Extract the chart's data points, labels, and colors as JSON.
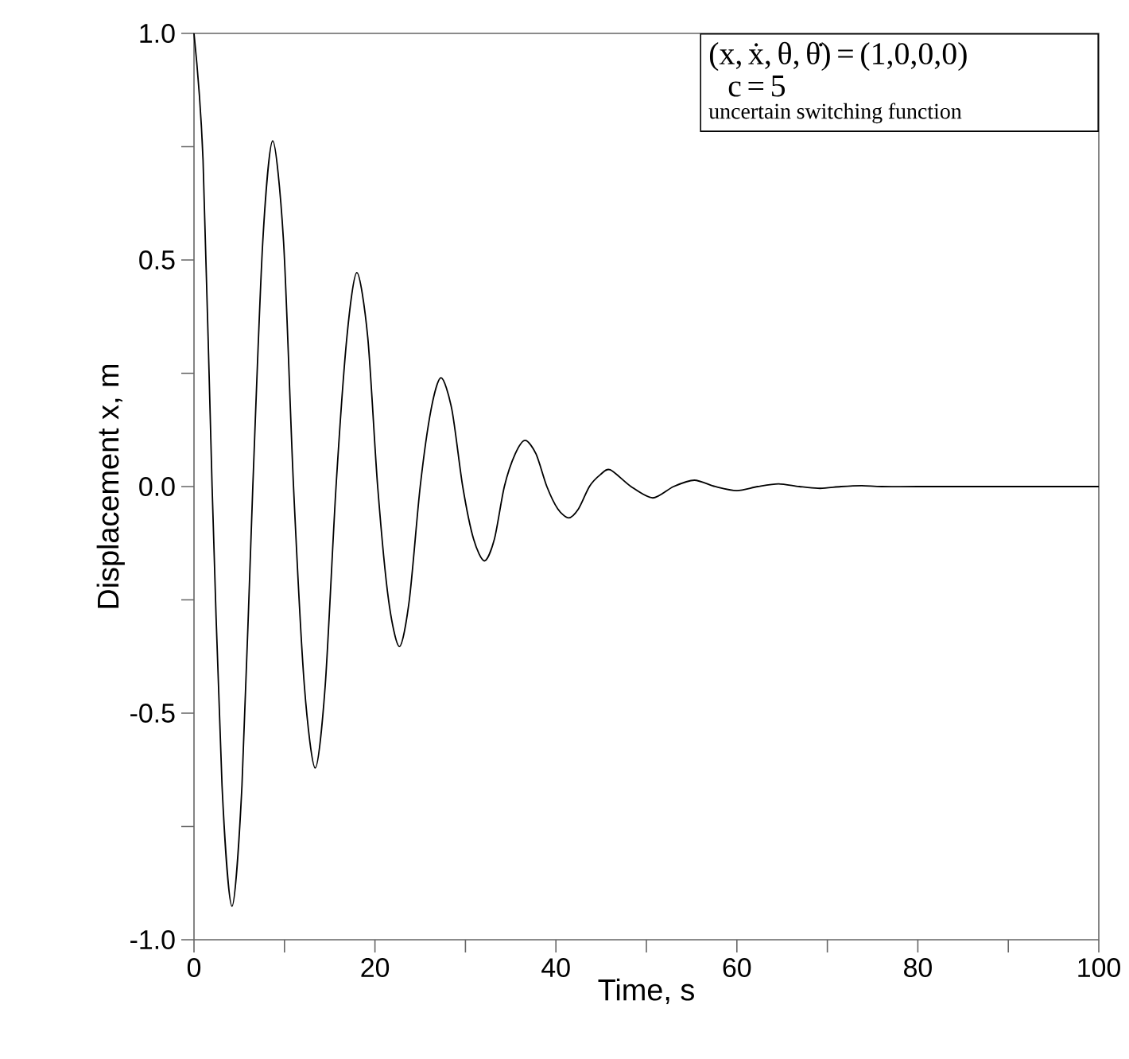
{
  "chart_data": {
    "type": "line",
    "xlabel": "Time, s",
    "ylabel": "Displacement x, m",
    "x": [
      0,
      1.0,
      2.0,
      3.1,
      4.2,
      5.3,
      6.5,
      7.6,
      8.7,
      9.9,
      11.0,
      12.2,
      13.4,
      14.5,
      15.7,
      16.9,
      18.0,
      19.2,
      20.3,
      21.5,
      22.7,
      23.8,
      25.0,
      26.2,
      27.3,
      28.5,
      29.7,
      30.9,
      32.1,
      33.2,
      34.3,
      35.5,
      36.6,
      37.8,
      39.0,
      40.2,
      41.4,
      42.5,
      43.7,
      44.9,
      46.0,
      48.3,
      50.7,
      53.0,
      55.3,
      57.6,
      60.0,
      62.3,
      64.6,
      66.9,
      69.2,
      71.5,
      73.8,
      76.0,
      80,
      90,
      100
    ],
    "series": [
      {
        "color": "#000000",
        "values": [
          1.0,
          0.72,
          0.0,
          -0.66,
          -0.926,
          -0.66,
          0.0,
          0.54,
          0.763,
          0.54,
          0.0,
          -0.44,
          -0.621,
          -0.44,
          0.0,
          0.33,
          0.472,
          0.33,
          0.0,
          -0.25,
          -0.353,
          -0.25,
          0.0,
          0.17,
          0.24,
          0.17,
          0.0,
          -0.116,
          -0.164,
          -0.116,
          0.0,
          0.072,
          0.102,
          0.072,
          0.0,
          -0.049,
          -0.069,
          -0.049,
          0.0,
          0.026,
          0.037,
          0.0,
          -0.025,
          0.0,
          0.014,
          0.0,
          -0.009,
          0.0,
          0.006,
          0.0,
          -0.004,
          0.0,
          0.002,
          0.0,
          0.0,
          0.0,
          0.0
        ]
      }
    ],
    "xlim": [
      0,
      100
    ],
    "ylim": [
      -1.0,
      1.0
    ],
    "xticks": [
      0,
      {
        "value": 10,
        "label": null
      },
      20,
      {
        "value": 30,
        "label": null
      },
      40,
      {
        "value": 50,
        "label": null
      },
      60,
      {
        "value": 70,
        "label": null
      },
      80,
      {
        "value": 90,
        "label": null
      },
      100
    ],
    "yticks": [
      {
        "value": -1.0,
        "label": "-1.0"
      },
      {
        "value": -0.75,
        "label": null
      },
      {
        "value": -0.5,
        "label": "-0.5"
      },
      {
        "value": -0.25,
        "label": null
      },
      {
        "value": 0,
        "label": "0.0"
      },
      {
        "value": 0.25,
        "label": null
      },
      {
        "value": 0.5,
        "label": "0.5"
      },
      {
        "value": 0.75,
        "label": null
      },
      {
        "value": 1.0,
        "label": "1.0"
      }
    ],
    "grid": false,
    "marker": "none",
    "line_style": "solid",
    "annotations": [
      "(x, ẋ, θ, θ̇) = (1,0,0,0)",
      "c = 5",
      "uncertain switching function"
    ]
  }
}
